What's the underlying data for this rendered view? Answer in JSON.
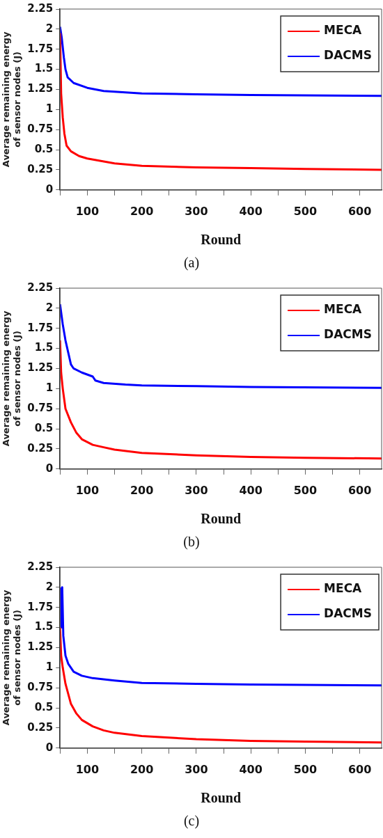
{
  "chart_data": [
    {
      "type": "line",
      "xlabel": "Round",
      "ylabel": "Average remaining energy\nof sensor nodes (J)",
      "annotations": [
        "(a)"
      ],
      "legend": "top right",
      "xlim": [
        50,
        640
      ],
      "xticks": [
        {
          "value": 50,
          "label": null
        },
        100,
        {
          "value": 150,
          "label": null
        },
        200,
        {
          "value": 250,
          "label": null
        },
        300,
        {
          "value": 350,
          "label": null
        },
        400,
        {
          "value": 450,
          "label": null
        },
        500,
        {
          "value": 550,
          "label": null
        },
        600
      ],
      "ylim": [
        0,
        2.25
      ],
      "yticks": [
        0,
        0.25,
        0.5,
        0.75,
        1,
        1.25,
        1.5,
        1.75,
        2,
        2.25
      ],
      "series": [
        {
          "name": "MECA",
          "color": "#ff0000",
          "x": [
            50,
            52,
            55,
            58,
            62,
            70,
            85,
            100,
            150,
            200,
            300,
            400,
            500,
            640
          ],
          "values": [
            1.95,
            1.2,
            0.9,
            0.7,
            0.55,
            0.48,
            0.42,
            0.39,
            0.33,
            0.3,
            0.28,
            0.27,
            0.26,
            0.25
          ]
        },
        {
          "name": "DACMS",
          "color": "#0000ff",
          "x": [
            50,
            53,
            57,
            60,
            64,
            75,
            100,
            130,
            200,
            300,
            400,
            640
          ],
          "values": [
            2.03,
            1.9,
            1.65,
            1.5,
            1.4,
            1.33,
            1.27,
            1.23,
            1.2,
            1.19,
            1.18,
            1.17
          ]
        }
      ]
    },
    {
      "type": "line",
      "xlabel": "Round",
      "ylabel": "Average remaining energy\nof sensor nodes (J)",
      "annotations": [
        "(b)"
      ],
      "legend": "top right",
      "xlim": [
        50,
        640
      ],
      "xticks": [
        {
          "value": 50,
          "label": null
        },
        100,
        {
          "value": 150,
          "label": null
        },
        200,
        {
          "value": 250,
          "label": null
        },
        300,
        {
          "value": 350,
          "label": null
        },
        400,
        {
          "value": 450,
          "label": null
        },
        500,
        {
          "value": 550,
          "label": null
        },
        600
      ],
      "ylim": [
        0,
        2.25
      ],
      "yticks": [
        0,
        0.25,
        0.5,
        0.75,
        1,
        1.25,
        1.5,
        1.75,
        2,
        2.25
      ],
      "series": [
        {
          "name": "MECA",
          "color": "#ff0000",
          "x": [
            50,
            52,
            55,
            60,
            70,
            80,
            90,
            110,
            130,
            150,
            200,
            300,
            400,
            500,
            640
          ],
          "values": [
            1.6,
            1.2,
            1.0,
            0.75,
            0.58,
            0.45,
            0.37,
            0.3,
            0.27,
            0.24,
            0.2,
            0.17,
            0.15,
            0.14,
            0.13
          ]
        },
        {
          "name": "DACMS",
          "color": "#0000ff",
          "x": [
            50,
            55,
            60,
            65,
            70,
            75,
            90,
            110,
            115,
            130,
            170,
            200,
            300,
            400,
            640
          ],
          "values": [
            2.05,
            1.8,
            1.6,
            1.45,
            1.3,
            1.25,
            1.2,
            1.15,
            1.1,
            1.07,
            1.05,
            1.04,
            1.03,
            1.02,
            1.01
          ]
        }
      ]
    },
    {
      "type": "line",
      "xlabel": "Round",
      "ylabel": "Average remaining energy\nof sensor nodes (J)",
      "annotations": [
        "(c)"
      ],
      "legend": "top right",
      "xlim": [
        50,
        640
      ],
      "xticks": [
        {
          "value": 50,
          "label": null
        },
        100,
        {
          "value": 150,
          "label": null
        },
        200,
        {
          "value": 250,
          "label": null
        },
        300,
        {
          "value": 350,
          "label": null
        },
        400,
        {
          "value": 450,
          "label": null
        },
        500,
        {
          "value": 550,
          "label": null
        },
        600
      ],
      "ylim": [
        0,
        2.25
      ],
      "yticks": [
        0,
        0.25,
        0.5,
        0.75,
        1,
        1.25,
        1.5,
        1.75,
        2,
        2.25
      ],
      "series": [
        {
          "name": "MECA",
          "color": "#ff0000",
          "x": [
            50,
            52,
            55,
            60,
            70,
            80,
            90,
            110,
            130,
            150,
            200,
            300,
            400,
            500,
            640
          ],
          "values": [
            1.5,
            1.15,
            1.0,
            0.8,
            0.55,
            0.43,
            0.35,
            0.27,
            0.22,
            0.19,
            0.15,
            0.11,
            0.09,
            0.08,
            0.07
          ]
        },
        {
          "name": "DACMS",
          "color": "#0000ff",
          "x": [
            52,
            53,
            54,
            56,
            60,
            65,
            75,
            90,
            110,
            150,
            200,
            300,
            400,
            640
          ],
          "values": [
            2.0,
            1.5,
            2.0,
            1.4,
            1.15,
            1.05,
            0.95,
            0.9,
            0.87,
            0.84,
            0.81,
            0.8,
            0.79,
            0.78
          ]
        }
      ]
    }
  ]
}
